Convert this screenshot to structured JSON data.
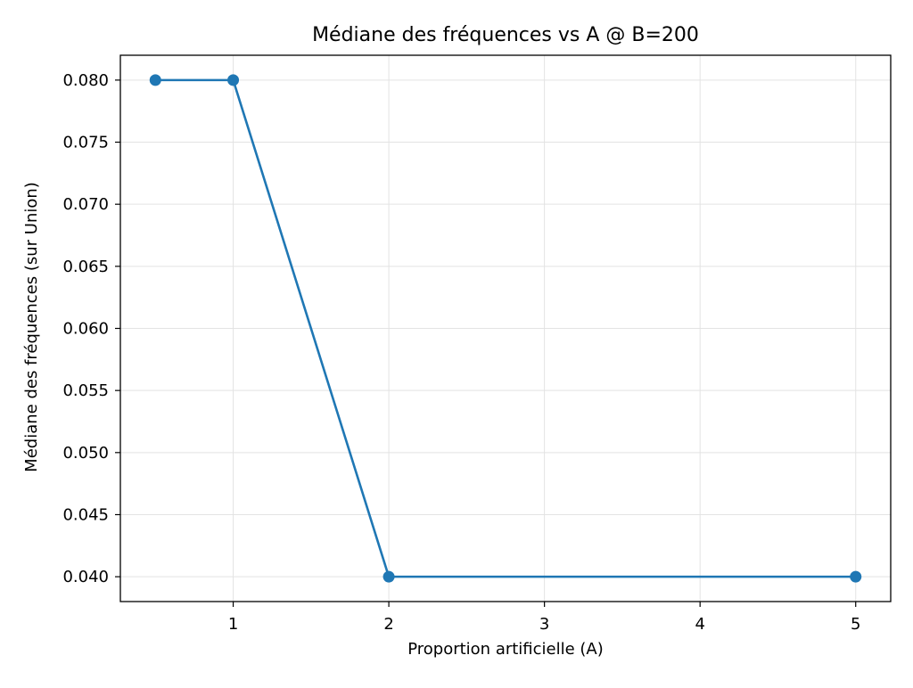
{
  "chart_data": {
    "type": "line",
    "title": "Médiane des fréquences vs A @ B=200",
    "xlabel": "Proportion artificielle (A)",
    "ylabel": "Médiane des fréquences (sur Union)",
    "x": [
      0.5,
      1,
      2,
      5
    ],
    "series": [
      {
        "values": [
          0.08,
          0.08,
          0.04,
          0.04
        ],
        "color": "#1f77b4",
        "marker": "circle"
      }
    ],
    "xlim": [
      0.275,
      5.225
    ],
    "ylim": [
      0.038,
      0.082
    ],
    "xticks": [
      1,
      2,
      3,
      4,
      5
    ],
    "xtick_labels": [
      "1",
      "2",
      "3",
      "4",
      "5"
    ],
    "yticks": [
      0.04,
      0.045,
      0.05,
      0.055,
      0.06,
      0.065,
      0.07,
      0.075,
      0.08
    ],
    "ytick_labels": [
      "0.040",
      "0.045",
      "0.050",
      "0.055",
      "0.060",
      "0.065",
      "0.070",
      "0.075",
      "0.080"
    ],
    "grid": true
  }
}
